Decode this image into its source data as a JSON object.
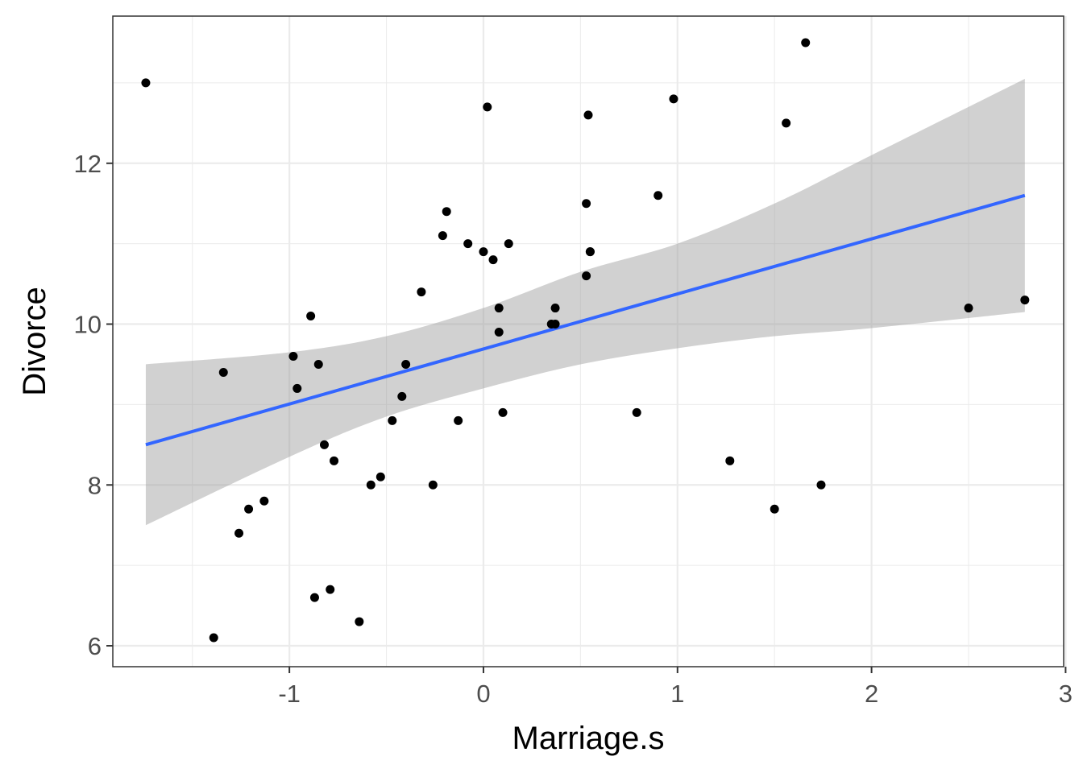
{
  "chart_data": {
    "type": "scatter",
    "title": "",
    "xlabel": "Marriage.s",
    "ylabel": "Divorce",
    "xlim": [
      -1.91,
      2.99
    ],
    "ylim": [
      5.74,
      13.83
    ],
    "x_ticks": [
      -1,
      0,
      1,
      2,
      3
    ],
    "x_tick_labels": [
      "-1",
      "0",
      "1",
      "2",
      "3"
    ],
    "y_ticks": [
      6,
      8,
      10,
      12
    ],
    "y_tick_labels": [
      "6",
      "8",
      "10",
      "12"
    ],
    "grid": true,
    "legend": "none",
    "theme": "bw",
    "colors": {
      "points": "#000000",
      "fit_line": "#3366ff",
      "ribbon": "#999999",
      "grid": "#ebebeb",
      "panel_border": "#333333"
    },
    "series": [
      {
        "type": "scatter",
        "x": [
          -1.74,
          -1.39,
          -1.34,
          -1.26,
          -1.21,
          -1.13,
          -0.98,
          -0.96,
          -0.89,
          -0.87,
          -0.85,
          -0.82,
          -0.79,
          -0.77,
          -0.64,
          -0.58,
          -0.53,
          -0.47,
          -0.42,
          -0.4,
          -0.32,
          -0.26,
          -0.21,
          -0.19,
          -0.13,
          -0.08,
          0.0,
          0.02,
          0.05,
          0.08,
          0.08,
          0.1,
          0.13,
          0.35,
          0.37,
          0.37,
          0.53,
          0.53,
          0.54,
          0.55,
          0.55,
          0.79,
          0.9,
          0.98,
          1.27,
          1.5,
          1.56,
          1.66,
          1.74,
          2.5,
          2.79
        ],
        "y": [
          13.0,
          6.1,
          9.4,
          7.4,
          7.7,
          7.8,
          9.6,
          9.2,
          10.1,
          6.6,
          9.5,
          8.5,
          6.7,
          8.3,
          6.3,
          8.0,
          8.1,
          8.8,
          9.1,
          9.5,
          10.4,
          8.0,
          11.1,
          11.4,
          8.8,
          11.0,
          10.9,
          12.7,
          10.8,
          10.2,
          9.9,
          8.9,
          11.0,
          10.0,
          10.0,
          10.2,
          11.5,
          10.6,
          12.6,
          10.9,
          10.9,
          8.9,
          11.6,
          12.8,
          8.3,
          7.7,
          12.5,
          13.5,
          8.0,
          10.2,
          10.3
        ]
      },
      {
        "type": "line",
        "name": "",
        "x": [
          -1.74,
          2.79
        ],
        "y": [
          8.5,
          11.6
        ]
      }
    ],
    "ribbon": {
      "x": [
        -1.74,
        -1.0,
        -0.5,
        0.0,
        0.5,
        1.0,
        1.5,
        2.0,
        2.79
      ],
      "lower": [
        7.5,
        8.35,
        8.85,
        9.2,
        9.5,
        9.7,
        9.85,
        9.95,
        10.15
      ],
      "upper": [
        9.5,
        9.65,
        9.85,
        10.2,
        10.65,
        11.0,
        11.5,
        12.1,
        13.05
      ]
    }
  }
}
